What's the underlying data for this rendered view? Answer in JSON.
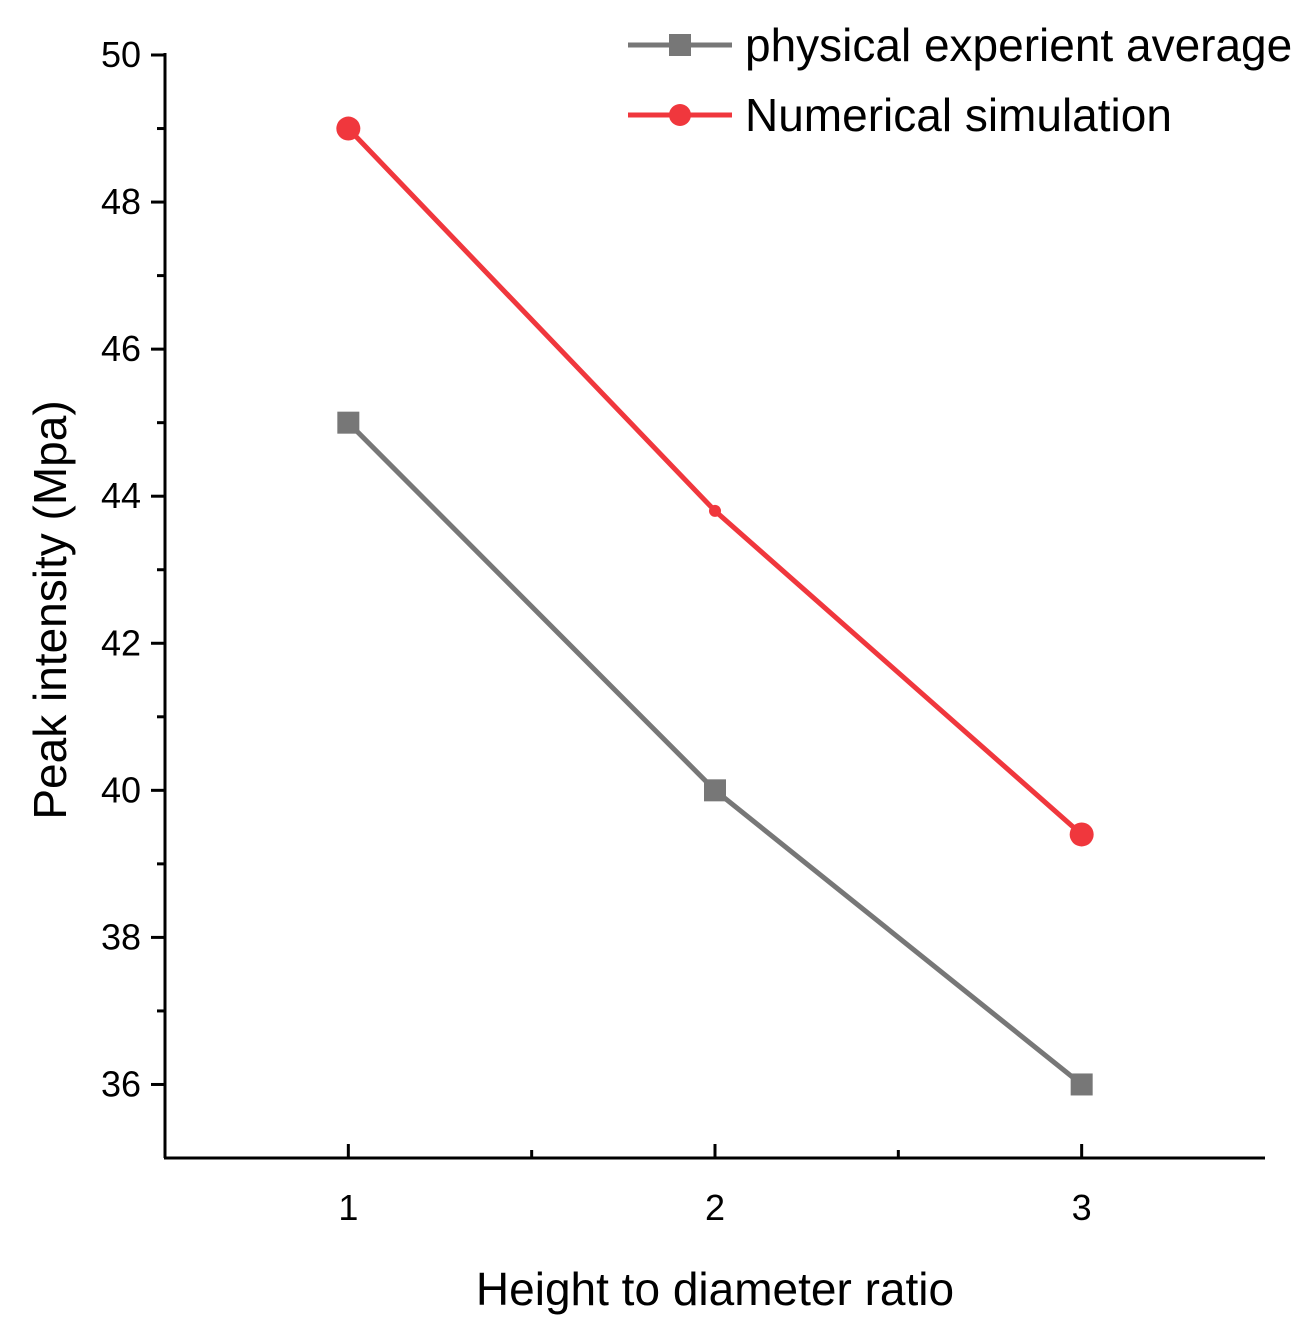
{
  "chart_data": {
    "type": "line",
    "xlabel": "Height to diameter ratio",
    "ylabel": "Peak intensity (Mpa)",
    "x": [
      1,
      2,
      3
    ],
    "xlim": [
      0.5,
      3.5
    ],
    "ylim": [
      35,
      50
    ],
    "xticks": [
      1,
      2,
      3
    ],
    "xminor": [
      1.5,
      2.5
    ],
    "yticks": [
      36,
      38,
      40,
      42,
      44,
      46,
      48,
      50
    ],
    "yminor": [
      37,
      39,
      41,
      43,
      45,
      47,
      49
    ],
    "grid": false,
    "legend_position": "top-right",
    "series": [
      {
        "name": "physical experient average",
        "values": [
          45,
          40,
          36
        ],
        "color": "#777777",
        "marker": "square"
      },
      {
        "name": "Numerical simulation",
        "values": [
          49,
          43.8,
          39.4
        ],
        "color": "#f0373d",
        "marker": "circle"
      }
    ]
  }
}
